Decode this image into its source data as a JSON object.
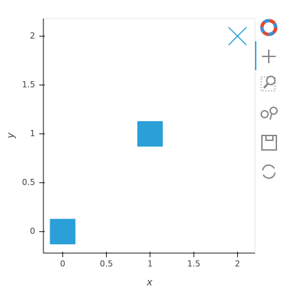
{
  "chart_data": {
    "type": "scatter",
    "x_label": "x",
    "y_label": "y",
    "x": [
      0,
      1,
      2
    ],
    "values": [
      0,
      1,
      2
    ],
    "markers": [
      "square",
      "square",
      "x"
    ],
    "color": "#2a9fd8",
    "xlim": [
      -0.22,
      2.2
    ],
    "ylim": [
      -0.22,
      2.18
    ],
    "xticks": [
      0,
      0.5,
      1,
      1.5,
      2
    ],
    "yticks": [
      0,
      0.5,
      1,
      1.5,
      2
    ],
    "grid": false
  }
}
